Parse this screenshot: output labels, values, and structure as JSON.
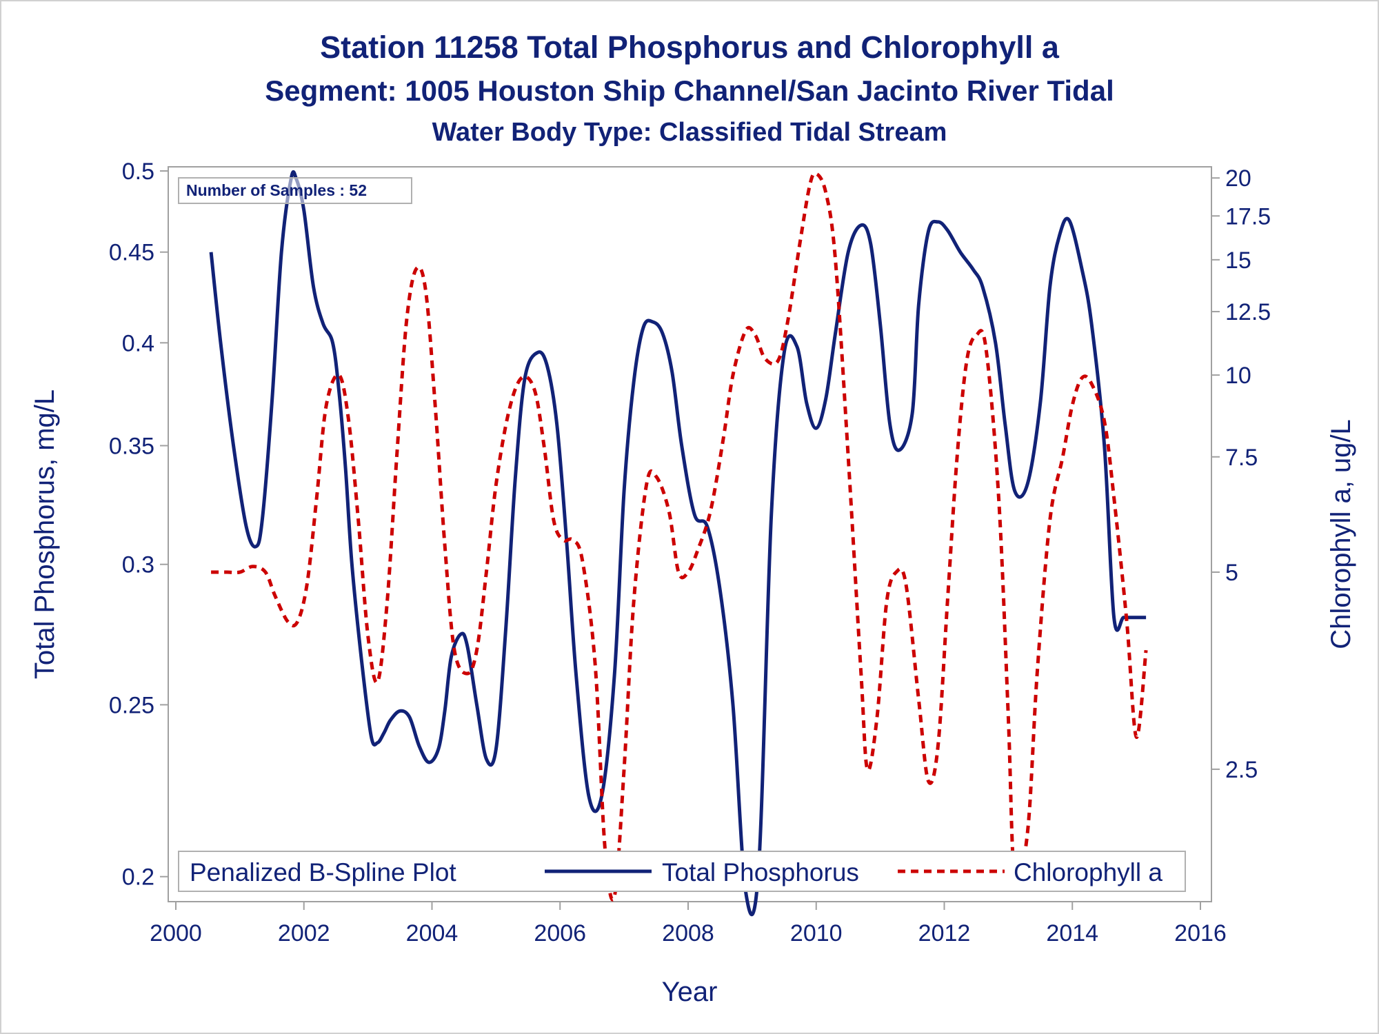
{
  "titles": {
    "line1": "Station 11258  Total Phosphorus and Chlorophyll a",
    "line2": "Segment: 1005  Houston Ship Channel/San Jacinto River Tidal",
    "line3": "Water Body Type: Classified Tidal Stream"
  },
  "inset": {
    "label": "Number of Samples : 52"
  },
  "legend": {
    "title": "Penalized B-Spline Plot",
    "items": [
      {
        "label": "Total Phosphorus",
        "color": "#112277",
        "style": "solid"
      },
      {
        "label": "Chlorophyll a",
        "color": "#cc0000",
        "style": "dashed"
      }
    ]
  },
  "chart_data": {
    "type": "line",
    "xlabel": "Year",
    "ylabel": "Total Phosphorus, mg/L",
    "y2label": "Chlorophyll a, ug/L",
    "xlim": [
      2000,
      2016
    ],
    "xticks": [
      2000,
      2002,
      2004,
      2006,
      2008,
      2010,
      2012,
      2014,
      2016
    ],
    "ylim": [
      0.195,
      0.5
    ],
    "yscale": "log",
    "yticks": [
      0.2,
      0.25,
      0.3,
      0.35,
      0.4,
      0.45,
      0.5
    ],
    "y2lim": [
      1.6,
      20.5
    ],
    "y2scale": "log",
    "y2ticks": [
      2.5,
      5,
      7.5,
      10,
      12.5,
      15,
      17.5,
      20
    ],
    "grid": false,
    "legend_position": "bottom-inside",
    "series": [
      {
        "name": "Total Phosphorus",
        "axis": "left",
        "color": "#112277",
        "x": [
          2000.55,
          2000.7,
          2000.9,
          2001.1,
          2001.25,
          2001.35,
          2001.5,
          2001.65,
          2001.8,
          2001.88,
          2002.0,
          2002.15,
          2002.3,
          2002.45,
          2002.55,
          2002.65,
          2002.75,
          2002.9,
          2003.05,
          2003.15,
          2003.25,
          2003.35,
          2003.5,
          2003.65,
          2003.8,
          2003.95,
          2004.1,
          2004.2,
          2004.3,
          2004.45,
          2004.55,
          2004.7,
          2004.85,
          2005.0,
          2005.15,
          2005.3,
          2005.45,
          2005.65,
          2005.8,
          2005.95,
          2006.1,
          2006.25,
          2006.45,
          2006.65,
          2006.85,
          2007.0,
          2007.15,
          2007.3,
          2007.45,
          2007.6,
          2007.75,
          2007.9,
          2008.1,
          2008.3,
          2008.5,
          2008.7,
          2008.9,
          2009.1,
          2009.3,
          2009.5,
          2009.7,
          2009.85,
          2010.0,
          2010.15,
          2010.3,
          2010.5,
          2010.7,
          2010.85,
          2011.0,
          2011.15,
          2011.3,
          2011.5,
          2011.6,
          2011.75,
          2011.9,
          2012.05,
          2012.25,
          2012.45,
          2012.6,
          2012.8,
          2012.95,
          2013.1,
          2013.3,
          2013.5,
          2013.65,
          2013.8,
          2013.95,
          2014.15,
          2014.3,
          2014.5,
          2014.65,
          2014.8,
          2014.95,
          2015.05,
          2015.15
        ],
        "values": [
          0.45,
          0.4,
          0.35,
          0.315,
          0.307,
          0.318,
          0.37,
          0.45,
          0.495,
          0.495,
          0.475,
          0.43,
          0.41,
          0.4,
          0.375,
          0.34,
          0.3,
          0.265,
          0.24,
          0.238,
          0.241,
          0.245,
          0.248,
          0.246,
          0.237,
          0.232,
          0.236,
          0.248,
          0.266,
          0.274,
          0.27,
          0.25,
          0.233,
          0.236,
          0.275,
          0.335,
          0.382,
          0.395,
          0.388,
          0.36,
          0.31,
          0.26,
          0.222,
          0.222,
          0.26,
          0.33,
          0.38,
          0.408,
          0.411,
          0.405,
          0.385,
          0.35,
          0.32,
          0.315,
          0.29,
          0.25,
          0.196,
          0.202,
          0.32,
          0.395,
          0.398,
          0.37,
          0.358,
          0.372,
          0.405,
          0.45,
          0.466,
          0.455,
          0.41,
          0.36,
          0.348,
          0.365,
          0.42,
          0.462,
          0.468,
          0.463,
          0.45,
          0.44,
          0.43,
          0.4,
          0.36,
          0.33,
          0.333,
          0.37,
          0.43,
          0.46,
          0.469,
          0.44,
          0.41,
          0.35,
          0.28,
          0.28,
          0.28,
          0.28,
          0.28
        ]
      },
      {
        "name": "Chlorophyll a",
        "axis": "right",
        "color": "#cc0000",
        "x": [
          2000.55,
          2000.8,
          2001.0,
          2001.2,
          2001.4,
          2001.55,
          2001.75,
          2001.9,
          2002.05,
          2002.2,
          2002.35,
          2002.55,
          2002.7,
          2002.85,
          2003.0,
          2003.15,
          2003.3,
          2003.45,
          2003.6,
          2003.75,
          2003.9,
          2004.05,
          2004.2,
          2004.35,
          2004.55,
          2004.7,
          2004.85,
          2005.0,
          2005.2,
          2005.4,
          2005.6,
          2005.75,
          2005.9,
          2006.05,
          2006.2,
          2006.35,
          2006.55,
          2006.7,
          2006.85,
          2007.0,
          2007.15,
          2007.35,
          2007.5,
          2007.7,
          2007.85,
          2008.0,
          2008.15,
          2008.35,
          2008.55,
          2008.7,
          2008.9,
          2009.05,
          2009.2,
          2009.4,
          2009.55,
          2009.75,
          2009.9,
          2010.0,
          2010.15,
          2010.3,
          2010.5,
          2010.7,
          2010.8,
          2010.95,
          2011.1,
          2011.25,
          2011.4,
          2011.6,
          2011.75,
          2011.9,
          2012.05,
          2012.2,
          2012.35,
          2012.5,
          2012.65,
          2012.85,
          2013.0,
          2013.1,
          2013.3,
          2013.45,
          2013.65,
          2013.85,
          2014.0,
          2014.15,
          2014.3,
          2014.5,
          2014.65,
          2014.85,
          2015.0,
          2015.15
        ],
        "values": [
          5.0,
          5.0,
          5.0,
          5.1,
          5.0,
          4.6,
          4.2,
          4.2,
          4.8,
          6.5,
          9.0,
          10.0,
          8.5,
          6.0,
          4.0,
          3.4,
          4.5,
          7.5,
          12.0,
          14.5,
          13.5,
          9.0,
          5.5,
          3.8,
          3.5,
          3.8,
          5.0,
          6.8,
          8.8,
          9.9,
          9.5,
          7.8,
          6.0,
          5.6,
          5.6,
          5.2,
          3.6,
          1.9,
          1.6,
          2.5,
          4.5,
          6.8,
          7.0,
          6.2,
          5.0,
          5.0,
          5.4,
          6.2,
          8.0,
          10.0,
          11.7,
          11.5,
          10.6,
          10.5,
          12.0,
          16.0,
          19.5,
          20.3,
          19.0,
          15.0,
          7.5,
          3.5,
          2.5,
          3.0,
          4.5,
          5.0,
          4.8,
          3.2,
          2.4,
          2.7,
          4.5,
          7.5,
          10.5,
          11.5,
          11.0,
          6.5,
          3.0,
          1.7,
          2.0,
          3.5,
          6.0,
          7.5,
          9.0,
          9.9,
          9.7,
          8.5,
          6.5,
          4.2,
          2.8,
          3.8
        ]
      }
    ]
  }
}
